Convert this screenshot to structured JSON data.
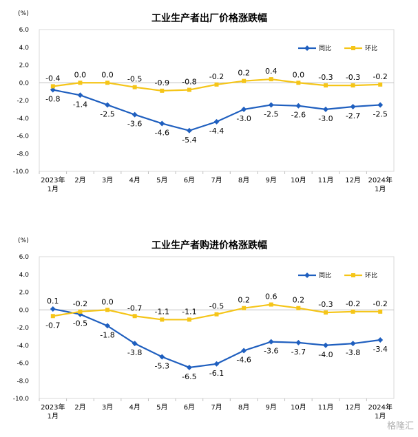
{
  "chart_data": [
    {
      "type": "line",
      "title": "工业生产者出厂价格涨跌幅",
      "unit": "(%)",
      "ylim": [
        -10.0,
        6.0
      ],
      "yticks": [
        "6.0",
        "4.0",
        "2.0",
        "0.0",
        "-2.0",
        "-4.0",
        "-6.0",
        "-8.0",
        "-10.0"
      ],
      "categories": [
        [
          "2023年",
          "1月"
        ],
        [
          "2月"
        ],
        [
          "3月"
        ],
        [
          "4月"
        ],
        [
          "5月"
        ],
        [
          "6月"
        ],
        [
          "7月"
        ],
        [
          "8月"
        ],
        [
          "9月"
        ],
        [
          "10月"
        ],
        [
          "11月"
        ],
        [
          "12月"
        ],
        [
          "2024年",
          "1月"
        ]
      ],
      "legend_position": "top-right",
      "series": [
        {
          "name": "同比",
          "color": "#1f5fbf",
          "marker": "diamond",
          "values": [
            -0.8,
            -1.4,
            -2.5,
            -3.6,
            -4.6,
            -5.4,
            -4.4,
            -3.0,
            -2.5,
            -2.6,
            -3.0,
            -2.7,
            -2.5
          ],
          "labels": [
            "-0.8",
            "-1.4",
            "-2.5",
            "-3.6",
            "-4.6",
            "-5.4",
            "-4.4",
            "-3.0",
            "-2.5",
            "-2.6",
            "-3.0",
            "-2.7",
            "-2.5"
          ],
          "label_side": [
            "below",
            "below",
            "below",
            "below",
            "below",
            "below",
            "below",
            "below",
            "below",
            "below",
            "below",
            "below",
            "below"
          ]
        },
        {
          "name": "环比",
          "color": "#f5c518",
          "marker": "square",
          "values": [
            -0.4,
            0.0,
            0.0,
            -0.5,
            -0.9,
            -0.8,
            -0.2,
            0.2,
            0.4,
            0.0,
            -0.3,
            -0.3,
            -0.2
          ],
          "labels": [
            "-0.4",
            "0.0",
            "0.0",
            "-0.5",
            "-0.9",
            "-0.8",
            "-0.2",
            "0.2",
            "0.4",
            "0.0",
            "-0.3",
            "-0.3",
            "-0.2"
          ],
          "label_side": [
            "above",
            "above",
            "above",
            "above",
            "above",
            "above",
            "above",
            "above",
            "above",
            "above",
            "above",
            "above",
            "above"
          ]
        }
      ]
    },
    {
      "type": "line",
      "title": "工业生产者购进价格涨跌幅",
      "unit": "(%)",
      "ylim": [
        -10.0,
        6.0
      ],
      "yticks": [
        "6.0",
        "4.0",
        "2.0",
        "0.0",
        "-2.0",
        "-4.0",
        "-6.0",
        "-8.0",
        "-10.0"
      ],
      "categories": [
        [
          "2023年",
          "1月"
        ],
        [
          "2月"
        ],
        [
          "3月"
        ],
        [
          "4月"
        ],
        [
          "5月"
        ],
        [
          "6月"
        ],
        [
          "7月"
        ],
        [
          "8月"
        ],
        [
          "9月"
        ],
        [
          "10月"
        ],
        [
          "11月"
        ],
        [
          "12月"
        ],
        [
          "2024年",
          "1月"
        ]
      ],
      "legend_position": "top-right",
      "series": [
        {
          "name": "同比",
          "color": "#1f5fbf",
          "marker": "diamond",
          "values": [
            0.1,
            -0.5,
            -1.8,
            -3.8,
            -5.3,
            -6.5,
            -6.1,
            -4.6,
            -3.6,
            -3.7,
            -4.0,
            -3.8,
            -3.4
          ],
          "labels": [
            "0.1",
            "-0.5",
            "-1.8",
            "-3.8",
            "-5.3",
            "-6.5",
            "-6.1",
            "-4.6",
            "-3.6",
            "-3.7",
            "-4.0",
            "-3.8",
            "-3.4"
          ],
          "label_side": [
            "above",
            "below",
            "below",
            "below",
            "below",
            "below",
            "below",
            "below",
            "below",
            "below",
            "below",
            "below",
            "below"
          ]
        },
        {
          "name": "环比",
          "color": "#f5c518",
          "marker": "square",
          "values": [
            -0.7,
            -0.2,
            0.0,
            -0.7,
            -1.1,
            -1.1,
            -0.5,
            0.2,
            0.6,
            0.2,
            -0.3,
            -0.2,
            -0.2
          ],
          "labels": [
            "-0.7",
            "-0.2",
            "0.0",
            "-0.7",
            "-1.1",
            "-1.1",
            "-0.5",
            "0.2",
            "0.6",
            "0.2",
            "-0.3",
            "-0.2",
            "-0.2"
          ],
          "label_side": [
            "below",
            "above",
            "above",
            "above",
            "above",
            "above",
            "above",
            "above",
            "above",
            "above",
            "above",
            "above",
            "above"
          ]
        }
      ]
    }
  ],
  "watermark": "格隆汇"
}
